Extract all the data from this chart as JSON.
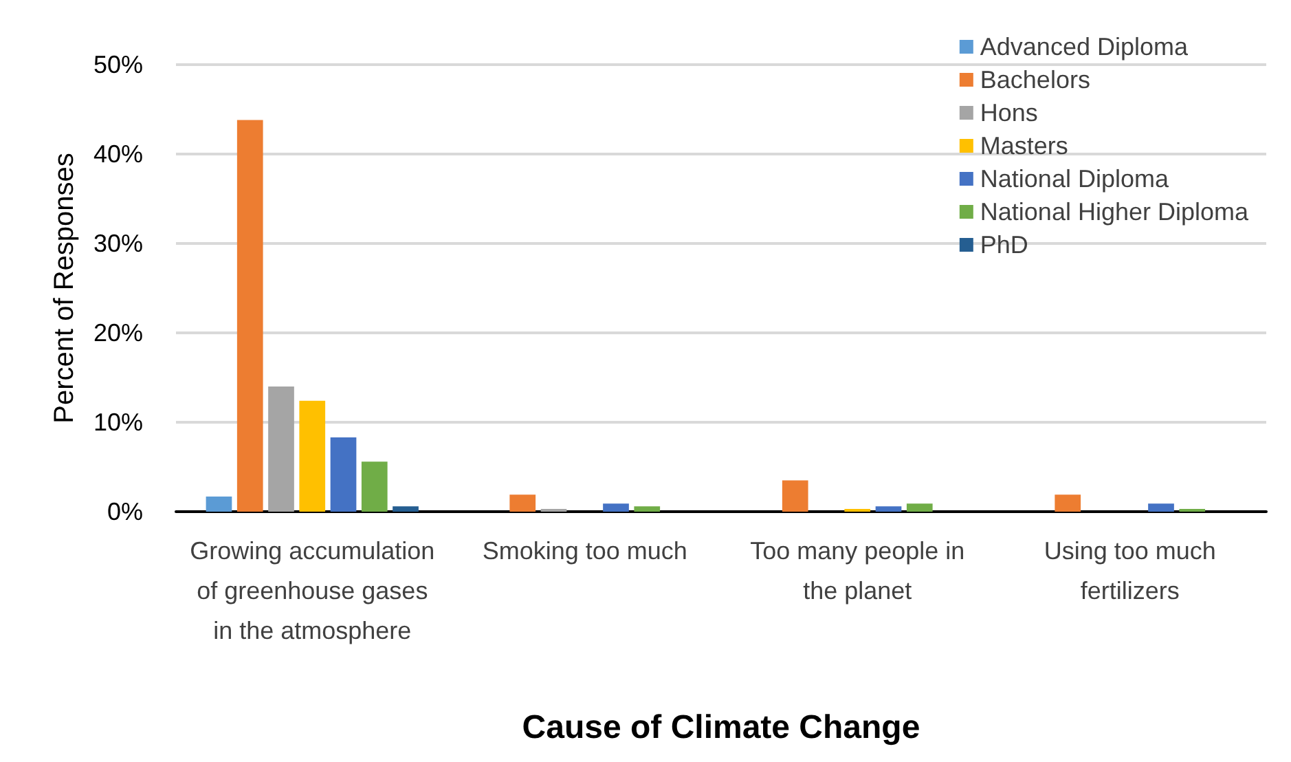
{
  "chart_data": {
    "type": "bar",
    "xlabel": "Cause of Climate Change",
    "ylabel": "Percent of Responses",
    "categories": [
      "Growing accumulation of greenhouse gases in the atmosphere",
      "Smoking too much",
      "Too many people in the planet",
      "Using too much fertilizers"
    ],
    "series": [
      {
        "name": "Advanced Diploma",
        "color": "#5b9bd5",
        "values": [
          1.7,
          0,
          0,
          0
        ]
      },
      {
        "name": "Bachelors",
        "color": "#ed7d31",
        "values": [
          43.8,
          1.9,
          3.5,
          1.9
        ]
      },
      {
        "name": "Hons",
        "color": "#a5a5a5",
        "values": [
          14,
          0.3,
          0,
          0
        ]
      },
      {
        "name": "Masters",
        "color": "#ffc000",
        "values": [
          12.4,
          0,
          0.3,
          0
        ]
      },
      {
        "name": "National Diploma",
        "color": "#4472c4",
        "values": [
          8.3,
          0.9,
          0.6,
          0.9
        ]
      },
      {
        "name": "National Higher Diploma",
        "color": "#70ad47",
        "values": [
          5.6,
          0.6,
          0.9,
          0.3
        ]
      },
      {
        "name": "PhD",
        "color": "#255e91",
        "values": [
          0.6,
          0,
          0,
          0
        ]
      }
    ],
    "ylim": [
      0,
      50
    ],
    "yticks": [
      {
        "value": 0,
        "label": "0%"
      },
      {
        "value": 10,
        "label": "10%"
      },
      {
        "value": 20,
        "label": "20%"
      },
      {
        "value": 30,
        "label": "30%"
      },
      {
        "value": 40,
        "label": "40%"
      },
      {
        "value": 50,
        "label": "50%"
      }
    ],
    "grid": "y",
    "legend": "top right"
  }
}
